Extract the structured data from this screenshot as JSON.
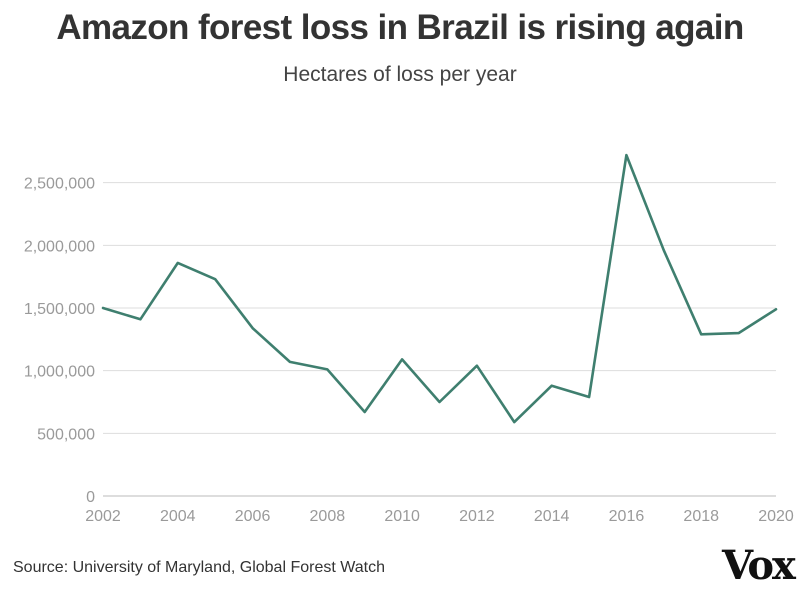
{
  "header": {
    "title": "Amazon forest loss in Brazil is rising again",
    "subtitle": "Hectares of loss per year"
  },
  "footer": {
    "source": "Source: University of Maryland, Global Forest Watch",
    "logo": "Vox"
  },
  "chart_data": {
    "type": "line",
    "title": "Amazon forest loss in Brazil is rising again",
    "subtitle": "Hectares of loss per year",
    "xlabel": "",
    "ylabel": "",
    "x": [
      2002,
      2003,
      2004,
      2005,
      2006,
      2007,
      2008,
      2009,
      2010,
      2011,
      2012,
      2013,
      2014,
      2015,
      2016,
      2017,
      2018,
      2019,
      2020
    ],
    "series": [
      {
        "values": [
          1500000,
          1410000,
          1860000,
          1730000,
          1340000,
          1070000,
          1010000,
          670000,
          1090000,
          750000,
          1040000,
          590000,
          880000,
          790000,
          2720000,
          1960000,
          1290000,
          1300000,
          1490000
        ]
      }
    ],
    "x_ticks": [
      "2002",
      "2004",
      "2006",
      "2008",
      "2010",
      "2012",
      "2014",
      "2016",
      "2018",
      "2020"
    ],
    "y_ticks": [
      "0",
      "500,000",
      "1,000,000",
      "1,500,000",
      "2,000,000",
      "2,500,000"
    ],
    "y_tick_values": [
      0,
      500000,
      1000000,
      1500000,
      2000000,
      2500000
    ],
    "xlim": [
      2002,
      2020
    ],
    "ylim": [
      0,
      2750000
    ],
    "grid": true,
    "line_color": "#3f7f6f",
    "grid_color": "#dddddd",
    "axis_color": "#bbbbbb"
  }
}
